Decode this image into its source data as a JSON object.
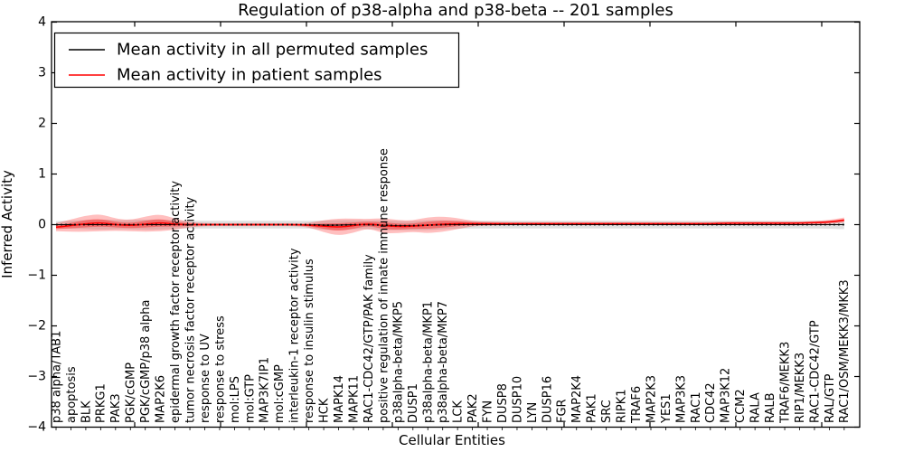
{
  "figure": {
    "title": "Regulation of p38-alpha and p38-beta -- 201 samples",
    "xlabel": "Cellular Entities",
    "ylabel": "Inferred Activity",
    "legend": [
      {
        "label": "Mean activity in all permuted samples",
        "color": "#000000"
      },
      {
        "label": "Mean activity in patient samples",
        "color": "#ff0000"
      }
    ]
  },
  "chart_data": {
    "type": "line",
    "title": "Regulation of p38-alpha and p38-beta -- 201 samples",
    "xlabel": "Cellular Entities",
    "ylabel": "Inferred Activity",
    "ylim": [
      -4,
      4
    ],
    "yticks": [
      -4,
      -3,
      -2,
      -1,
      0,
      1,
      2,
      3,
      4
    ],
    "grid": false,
    "legend_position": "upper left",
    "categories": [
      "p38 alpha/TAB1",
      "apoptosis",
      "BLK",
      "PRKG1",
      "PAK3",
      "PGK/cGMP",
      "PGK/cGMP/p38 alpha",
      "MAP2K6",
      "epidermal growth factor receptor activity",
      "tumor necrosis factor receptor activity",
      "response to UV",
      "response to stress",
      "mol:LPS",
      "mol:GTP",
      "MAP3K7IP1",
      "mol:cGMP",
      "interleukin-1 receptor activity",
      "response to insulin stimulus",
      "HCK",
      "MAPK14",
      "MAPK11",
      "RAC1-CDC42/GTP/PAK family",
      "positive regulation of innate immune response",
      "p38alpha-beta/MKP5",
      "DUSP1",
      "p38alpha-beta/MKP1",
      "p38alpha-beta/MKP7",
      "LCK",
      "PAK2",
      "FYN",
      "DUSP8",
      "DUSP10",
      "LYN",
      "DUSP16",
      "FGR",
      "MAP2K4",
      "PAK1",
      "SRC",
      "RIPK1",
      "TRAF6",
      "MAP2K3",
      "YES1",
      "MAP3K3",
      "RAC1",
      "CDC42",
      "MAP3K12",
      "CCM2",
      "RALA",
      "RALB",
      "TRAF6/MEKK3",
      "RIP1/MEKK3",
      "RAC1-CDC42/GTP",
      "RAL/GTP",
      "RAC1/OSM/MEKK3/MKK3"
    ],
    "series": [
      {
        "name": "Mean activity in all permuted samples",
        "color": "#000000",
        "band_color": "rgba(0,0,0,0.12)",
        "values": [
          0,
          0,
          0,
          0,
          0,
          0,
          0,
          0,
          0,
          0,
          0,
          0,
          0,
          0,
          0,
          0,
          0,
          0,
          -0.01,
          -0.01,
          0,
          0,
          -0.01,
          -0.02,
          -0.02,
          -0.01,
          0,
          0,
          0,
          0,
          0,
          0,
          0,
          0,
          0,
          0,
          0,
          0,
          0,
          0,
          0,
          0,
          0,
          0,
          0,
          0,
          0,
          0,
          0,
          0,
          0,
          0,
          0,
          0
        ],
        "band_halfwidth": [
          0.07,
          0.08,
          0.09,
          0.1,
          0.09,
          0.09,
          0.1,
          0.1,
          0.08,
          0.075,
          0.075,
          0.075,
          0.075,
          0.075,
          0.075,
          0.075,
          0.075,
          0.075,
          0.09,
          0.1,
          0.09,
          0.08,
          0.1,
          0.09,
          0.09,
          0.1,
          0.09,
          0.08,
          0.075,
          0.075,
          0.075,
          0.075,
          0.075,
          0.075,
          0.075,
          0.075,
          0.075,
          0.075,
          0.075,
          0.075,
          0.075,
          0.075,
          0.075,
          0.075,
          0.075,
          0.075,
          0.075,
          0.075,
          0.075,
          0.075,
          0.075,
          0.075,
          0.08,
          0.09
        ]
      },
      {
        "name": "Mean activity in patient samples",
        "color": "#ff0000",
        "band_color": "rgba(255,0,0,0.25)",
        "inner_band_color": "rgba(255,0,0,0.35)",
        "inner_band_factor": 0.45,
        "values": [
          -0.05,
          -0.02,
          0.02,
          0.04,
          0,
          -0.02,
          0.01,
          0.04,
          0.01,
          0,
          0,
          0,
          0,
          0,
          0,
          0,
          0,
          -0.01,
          -0.03,
          -0.05,
          -0.02,
          0.02,
          -0.02,
          -0.04,
          -0.03,
          -0.01,
          0.01,
          0.02,
          0.02,
          0.02,
          0.02,
          0.02,
          0.02,
          0.02,
          0.02,
          0.02,
          0.02,
          0.02,
          0.02,
          0.02,
          0.02,
          0.02,
          0.02,
          0.02,
          0.02,
          0.03,
          0.03,
          0.03,
          0.03,
          0.03,
          0.03,
          0.04,
          0.05,
          0.09
        ],
        "band_halfwidth": [
          0.08,
          0.12,
          0.16,
          0.17,
          0.12,
          0.11,
          0.15,
          0.17,
          0.11,
          0.05,
          0.03,
          0.03,
          0.03,
          0.03,
          0.03,
          0.03,
          0.03,
          0.04,
          0.12,
          0.17,
          0.14,
          0.09,
          0.15,
          0.13,
          0.11,
          0.16,
          0.15,
          0.11,
          0.05,
          0.04,
          0.03,
          0.03,
          0.03,
          0.03,
          0.03,
          0.03,
          0.03,
          0.03,
          0.03,
          0.03,
          0.03,
          0.03,
          0.03,
          0.03,
          0.03,
          0.03,
          0.03,
          0.03,
          0.03,
          0.03,
          0.03,
          0.03,
          0.04,
          0.05
        ]
      }
    ]
  }
}
